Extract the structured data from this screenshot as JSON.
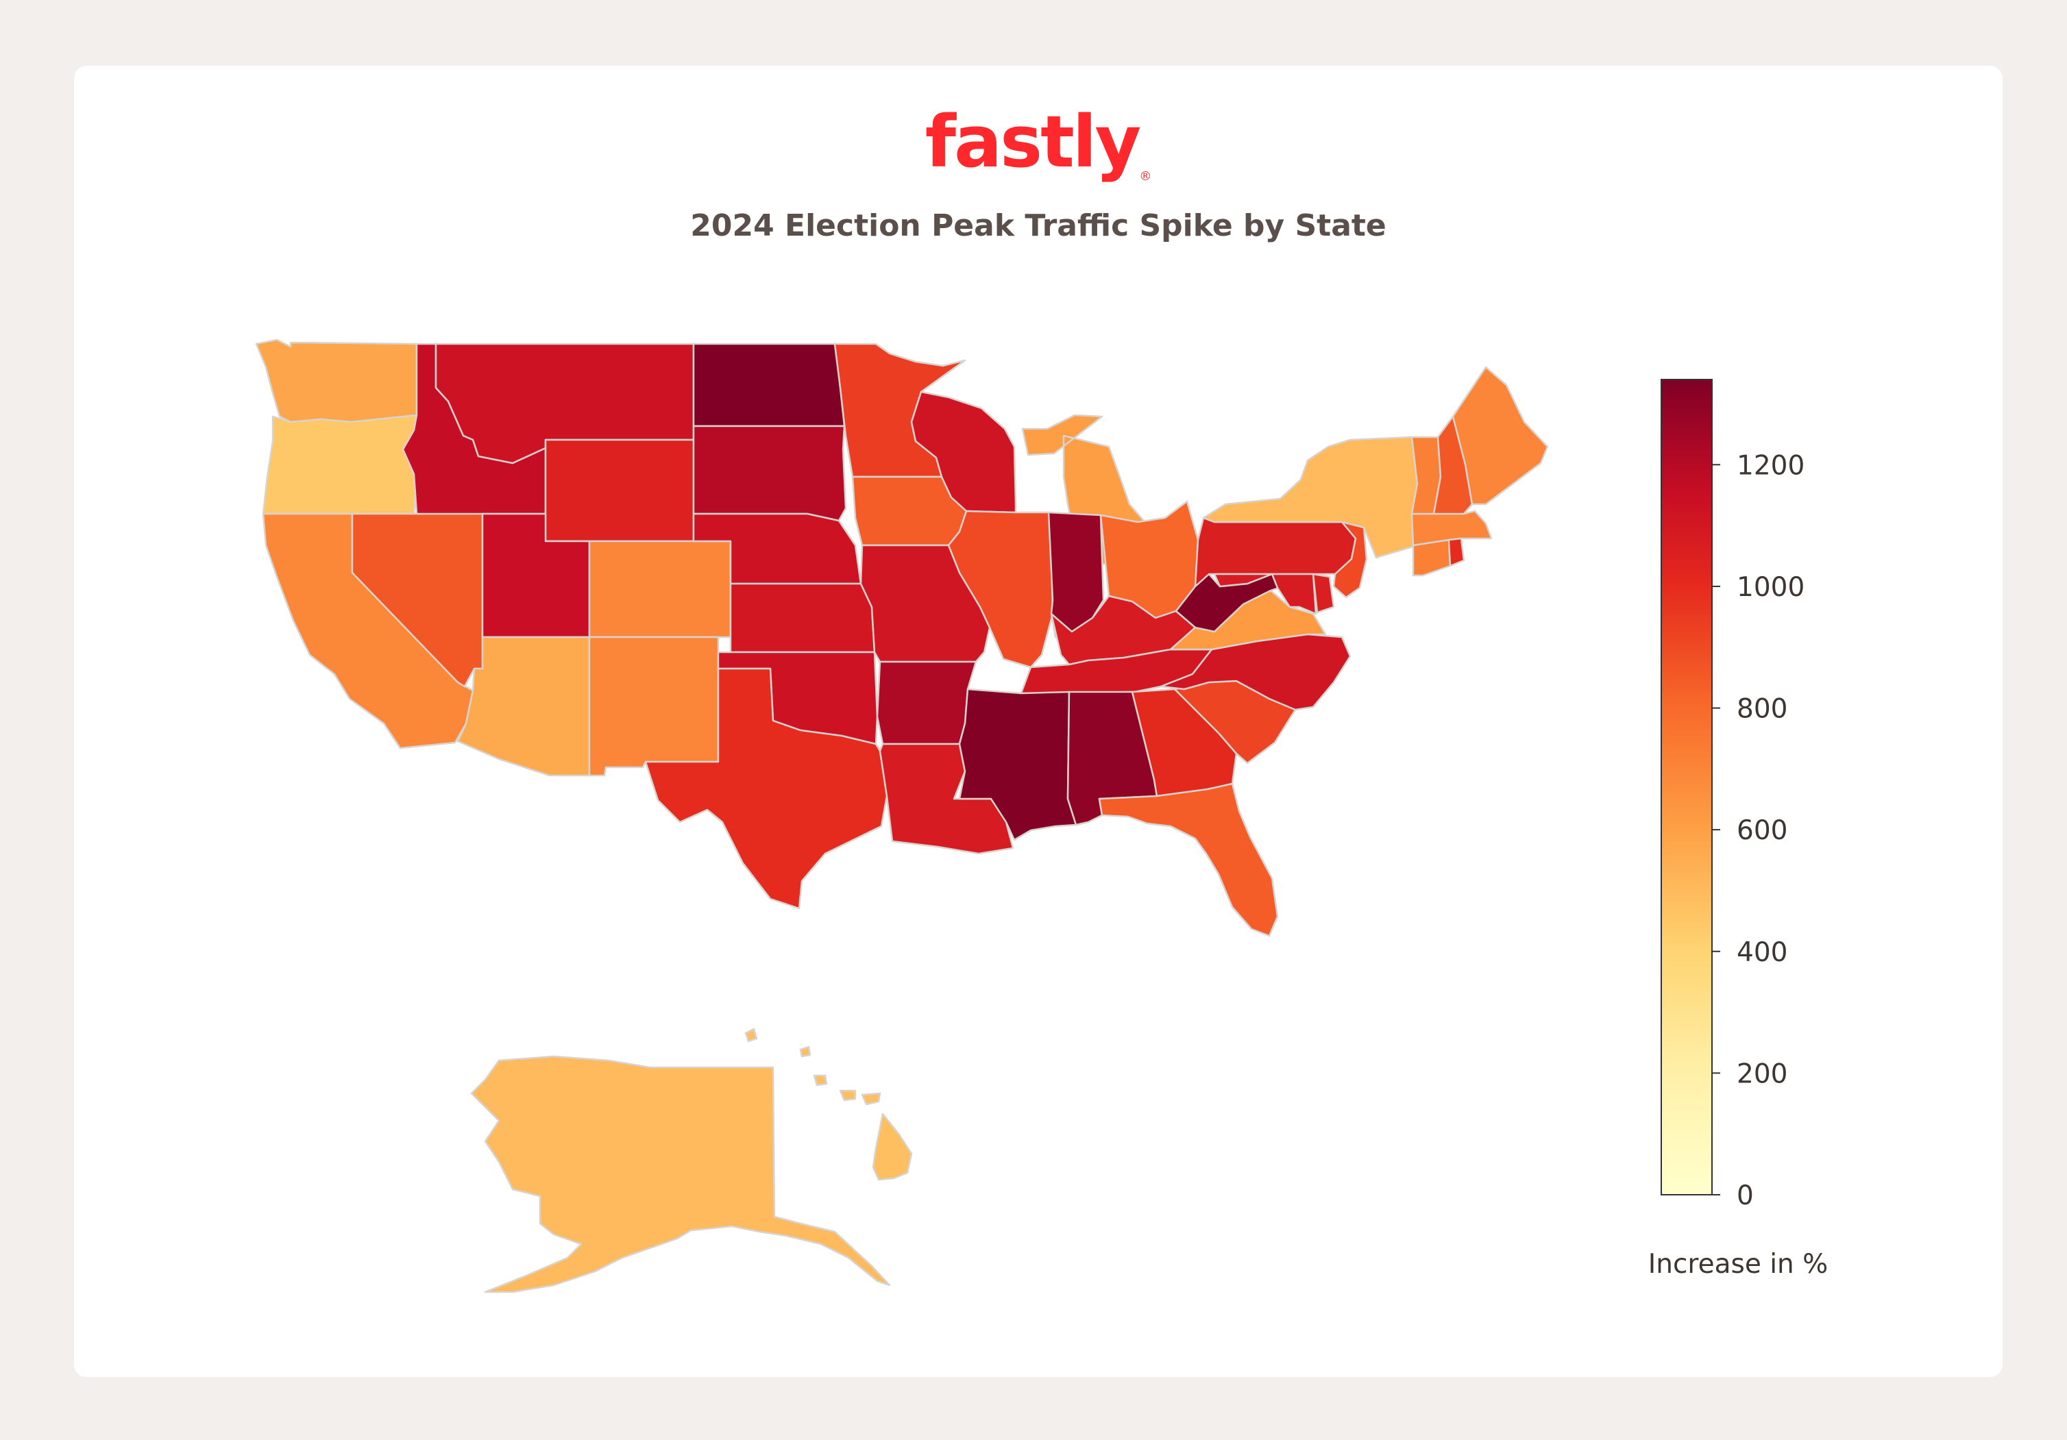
{
  "logo": {
    "text": "fastly",
    "color": "#ff282d"
  },
  "title": "2024 Election Peak Traffic Spike by State",
  "chart_data": {
    "type": "choropleth",
    "title": "2024 Election Peak Traffic Spike by State",
    "colorscale": "YlOrRd",
    "color_range": [
      0,
      1340
    ],
    "colorbar": {
      "title": "Increase in %",
      "ticks": [
        0,
        200,
        400,
        600,
        800,
        1000,
        1200
      ],
      "placement": "right"
    },
    "stops": [
      {
        "v": 0,
        "c": "#ffffcc"
      },
      {
        "v": 200,
        "c": "#fff0a8"
      },
      {
        "v": 400,
        "c": "#fed472"
      },
      {
        "v": 600,
        "c": "#fda045"
      },
      {
        "v": 800,
        "c": "#f86a2a"
      },
      {
        "v": 1000,
        "c": "#e52a1e"
      },
      {
        "v": 1150,
        "c": "#c90e25"
      },
      {
        "v": 1340,
        "c": "#800026"
      }
    ],
    "states": [
      {
        "code": "WA",
        "value": 580
      },
      {
        "code": "OR",
        "value": 450
      },
      {
        "code": "CA",
        "value": 690
      },
      {
        "code": "NV",
        "value": 860
      },
      {
        "code": "ID",
        "value": 1160
      },
      {
        "code": "MT",
        "value": 1130
      },
      {
        "code": "WY",
        "value": 1050
      },
      {
        "code": "UT",
        "value": 1150
      },
      {
        "code": "AZ",
        "value": 560
      },
      {
        "code": "CO",
        "value": 700
      },
      {
        "code": "NM",
        "value": 700
      },
      {
        "code": "ND",
        "value": 1340
      },
      {
        "code": "SD",
        "value": 1200
      },
      {
        "code": "NE",
        "value": 1130
      },
      {
        "code": "KS",
        "value": 1100
      },
      {
        "code": "OK",
        "value": 1130
      },
      {
        "code": "TX",
        "value": 1000
      },
      {
        "code": "MN",
        "value": 940
      },
      {
        "code": "IA",
        "value": 840
      },
      {
        "code": "MO",
        "value": 1110
      },
      {
        "code": "AR",
        "value": 1220
      },
      {
        "code": "LA",
        "value": 1080
      },
      {
        "code": "WI",
        "value": 1120
      },
      {
        "code": "IL",
        "value": 900
      },
      {
        "code": "MI",
        "value": 610
      },
      {
        "code": "IN",
        "value": 1280
      },
      {
        "code": "OH",
        "value": 810
      },
      {
        "code": "KY",
        "value": 1080
      },
      {
        "code": "TN",
        "value": 1100
      },
      {
        "code": "MS",
        "value": 1330
      },
      {
        "code": "AL",
        "value": 1300
      },
      {
        "code": "GA",
        "value": 1010
      },
      {
        "code": "FL",
        "value": 840
      },
      {
        "code": "SC",
        "value": 920
      },
      {
        "code": "NC",
        "value": 1110
      },
      {
        "code": "VA",
        "value": 620
      },
      {
        "code": "WV",
        "value": 1330
      },
      {
        "code": "PA",
        "value": 1060
      },
      {
        "code": "NY",
        "value": 500
      },
      {
        "code": "NJ",
        "value": 900
      },
      {
        "code": "DE",
        "value": 1060
      },
      {
        "code": "MD",
        "value": 1080
      },
      {
        "code": "CT",
        "value": 720
      },
      {
        "code": "RI",
        "value": 1000
      },
      {
        "code": "MA",
        "value": 700
      },
      {
        "code": "VT",
        "value": 720
      },
      {
        "code": "NH",
        "value": 860
      },
      {
        "code": "ME",
        "value": 700
      },
      {
        "code": "AK",
        "value": 500
      },
      {
        "code": "HI",
        "value": 480
      }
    ]
  }
}
